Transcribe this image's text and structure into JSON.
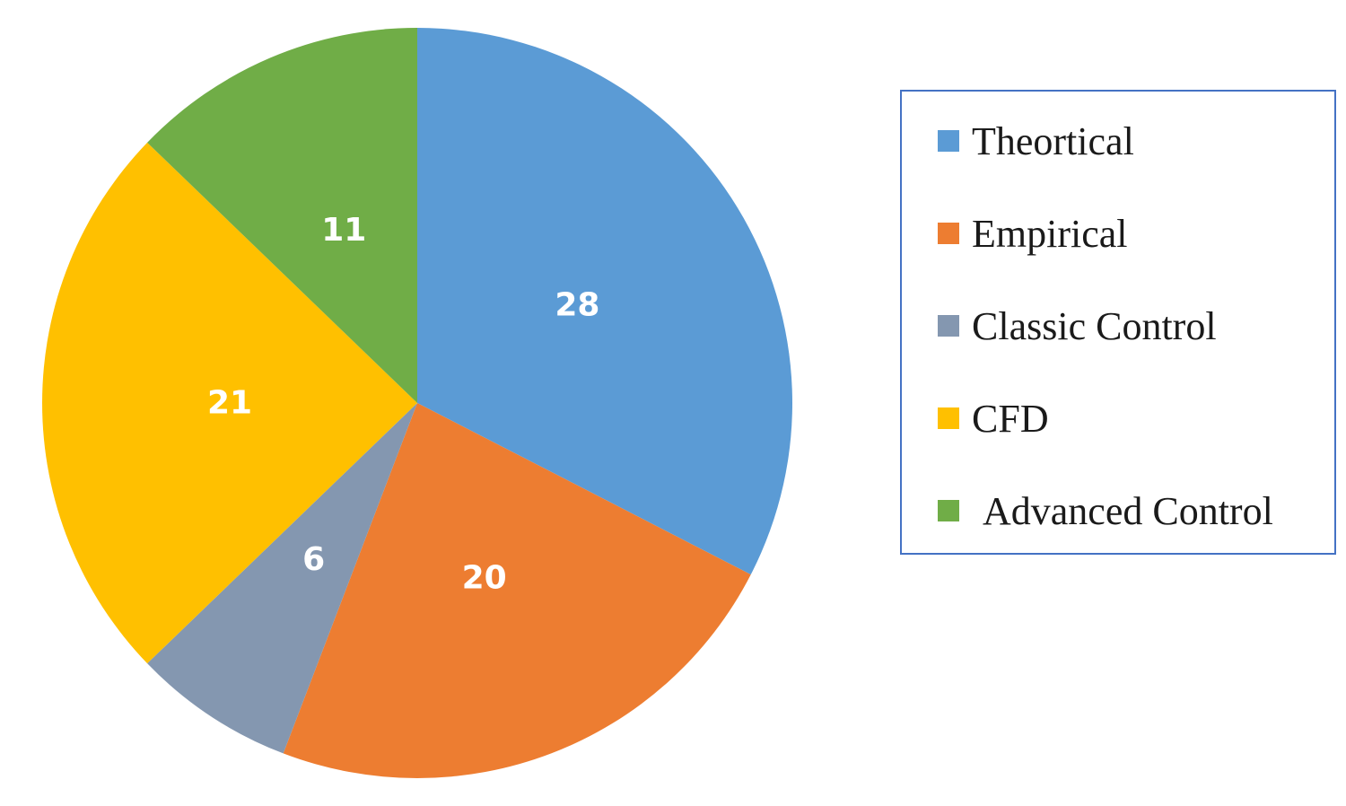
{
  "chart_data": {
    "type": "pie",
    "categories": [
      "Theortical",
      "Empirical",
      "Classic Control",
      "CFD",
      "Advanced Control"
    ],
    "values": [
      28,
      20,
      6,
      21,
      11
    ],
    "colors": [
      "#5b9bd5",
      "#ed7d31",
      "#8497b0",
      "#ffc000",
      "#70ad47"
    ],
    "start_angle_deg": 0,
    "direction": "clockwise",
    "data_labels": [
      "28",
      "20",
      "6",
      "21",
      "11"
    ],
    "legend_placement": "right"
  },
  "legend": {
    "items": [
      {
        "label": "Theortical",
        "color": "#5b9bd5"
      },
      {
        "label": "Empirical",
        "color": "#ed7d31"
      },
      {
        "label": "Classic Control",
        "color": "#8497b0"
      },
      {
        "label": "CFD",
        "color": "#ffc000"
      },
      {
        "label": "Advanced Control",
        "color": "#70ad47"
      }
    ]
  }
}
